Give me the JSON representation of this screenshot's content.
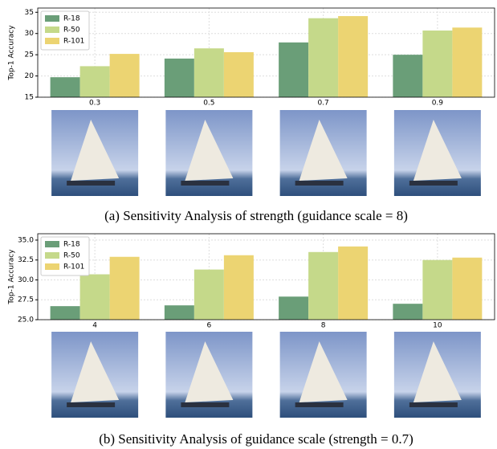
{
  "chart_data": [
    {
      "type": "bar",
      "y_label": "Top-1 Accuracy",
      "categories": [
        "0.3",
        "0.5",
        "0.7",
        "0.9"
      ],
      "series": [
        {
          "name": "R-18",
          "color": "#6a9e78",
          "values": [
            19.7,
            24.1,
            27.9,
            25.0
          ]
        },
        {
          "name": "R-50",
          "color": "#c5d98a",
          "values": [
            22.3,
            26.5,
            33.6,
            30.7
          ]
        },
        {
          "name": "R-101",
          "color": "#ecd472",
          "values": [
            25.2,
            25.6,
            34.1,
            31.4
          ]
        }
      ],
      "ylim": [
        15,
        36
      ],
      "yticks": [
        15,
        20,
        25,
        30,
        35
      ],
      "grid": true,
      "legend": "upper-left",
      "caption": "(a) Sensitivity Analysis of strength (guidance scale = 8)"
    },
    {
      "type": "bar",
      "y_label": "Top-1 Accuracy",
      "categories": [
        "4",
        "6",
        "8",
        "10"
      ],
      "series": [
        {
          "name": "R-18",
          "color": "#6a9e78",
          "values": [
            26.7,
            26.8,
            27.9,
            27.0
          ]
        },
        {
          "name": "R-50",
          "color": "#c5d98a",
          "values": [
            30.7,
            31.3,
            33.5,
            32.5
          ]
        },
        {
          "name": "R-101",
          "color": "#ecd472",
          "values": [
            32.9,
            33.1,
            34.2,
            32.8
          ]
        }
      ],
      "ylim": [
        25,
        35.8
      ],
      "yticks": [
        {
          "value": 25,
          "label": "25.0"
        },
        27.5,
        {
          "value": 30,
          "label": "30.0"
        },
        32.5,
        {
          "value": 35,
          "label": "35.0"
        }
      ],
      "grid": true,
      "legend": "upper-left",
      "caption": "(b) Sensitivity Analysis of guidance scale (strength = 0.7)"
    }
  ]
}
